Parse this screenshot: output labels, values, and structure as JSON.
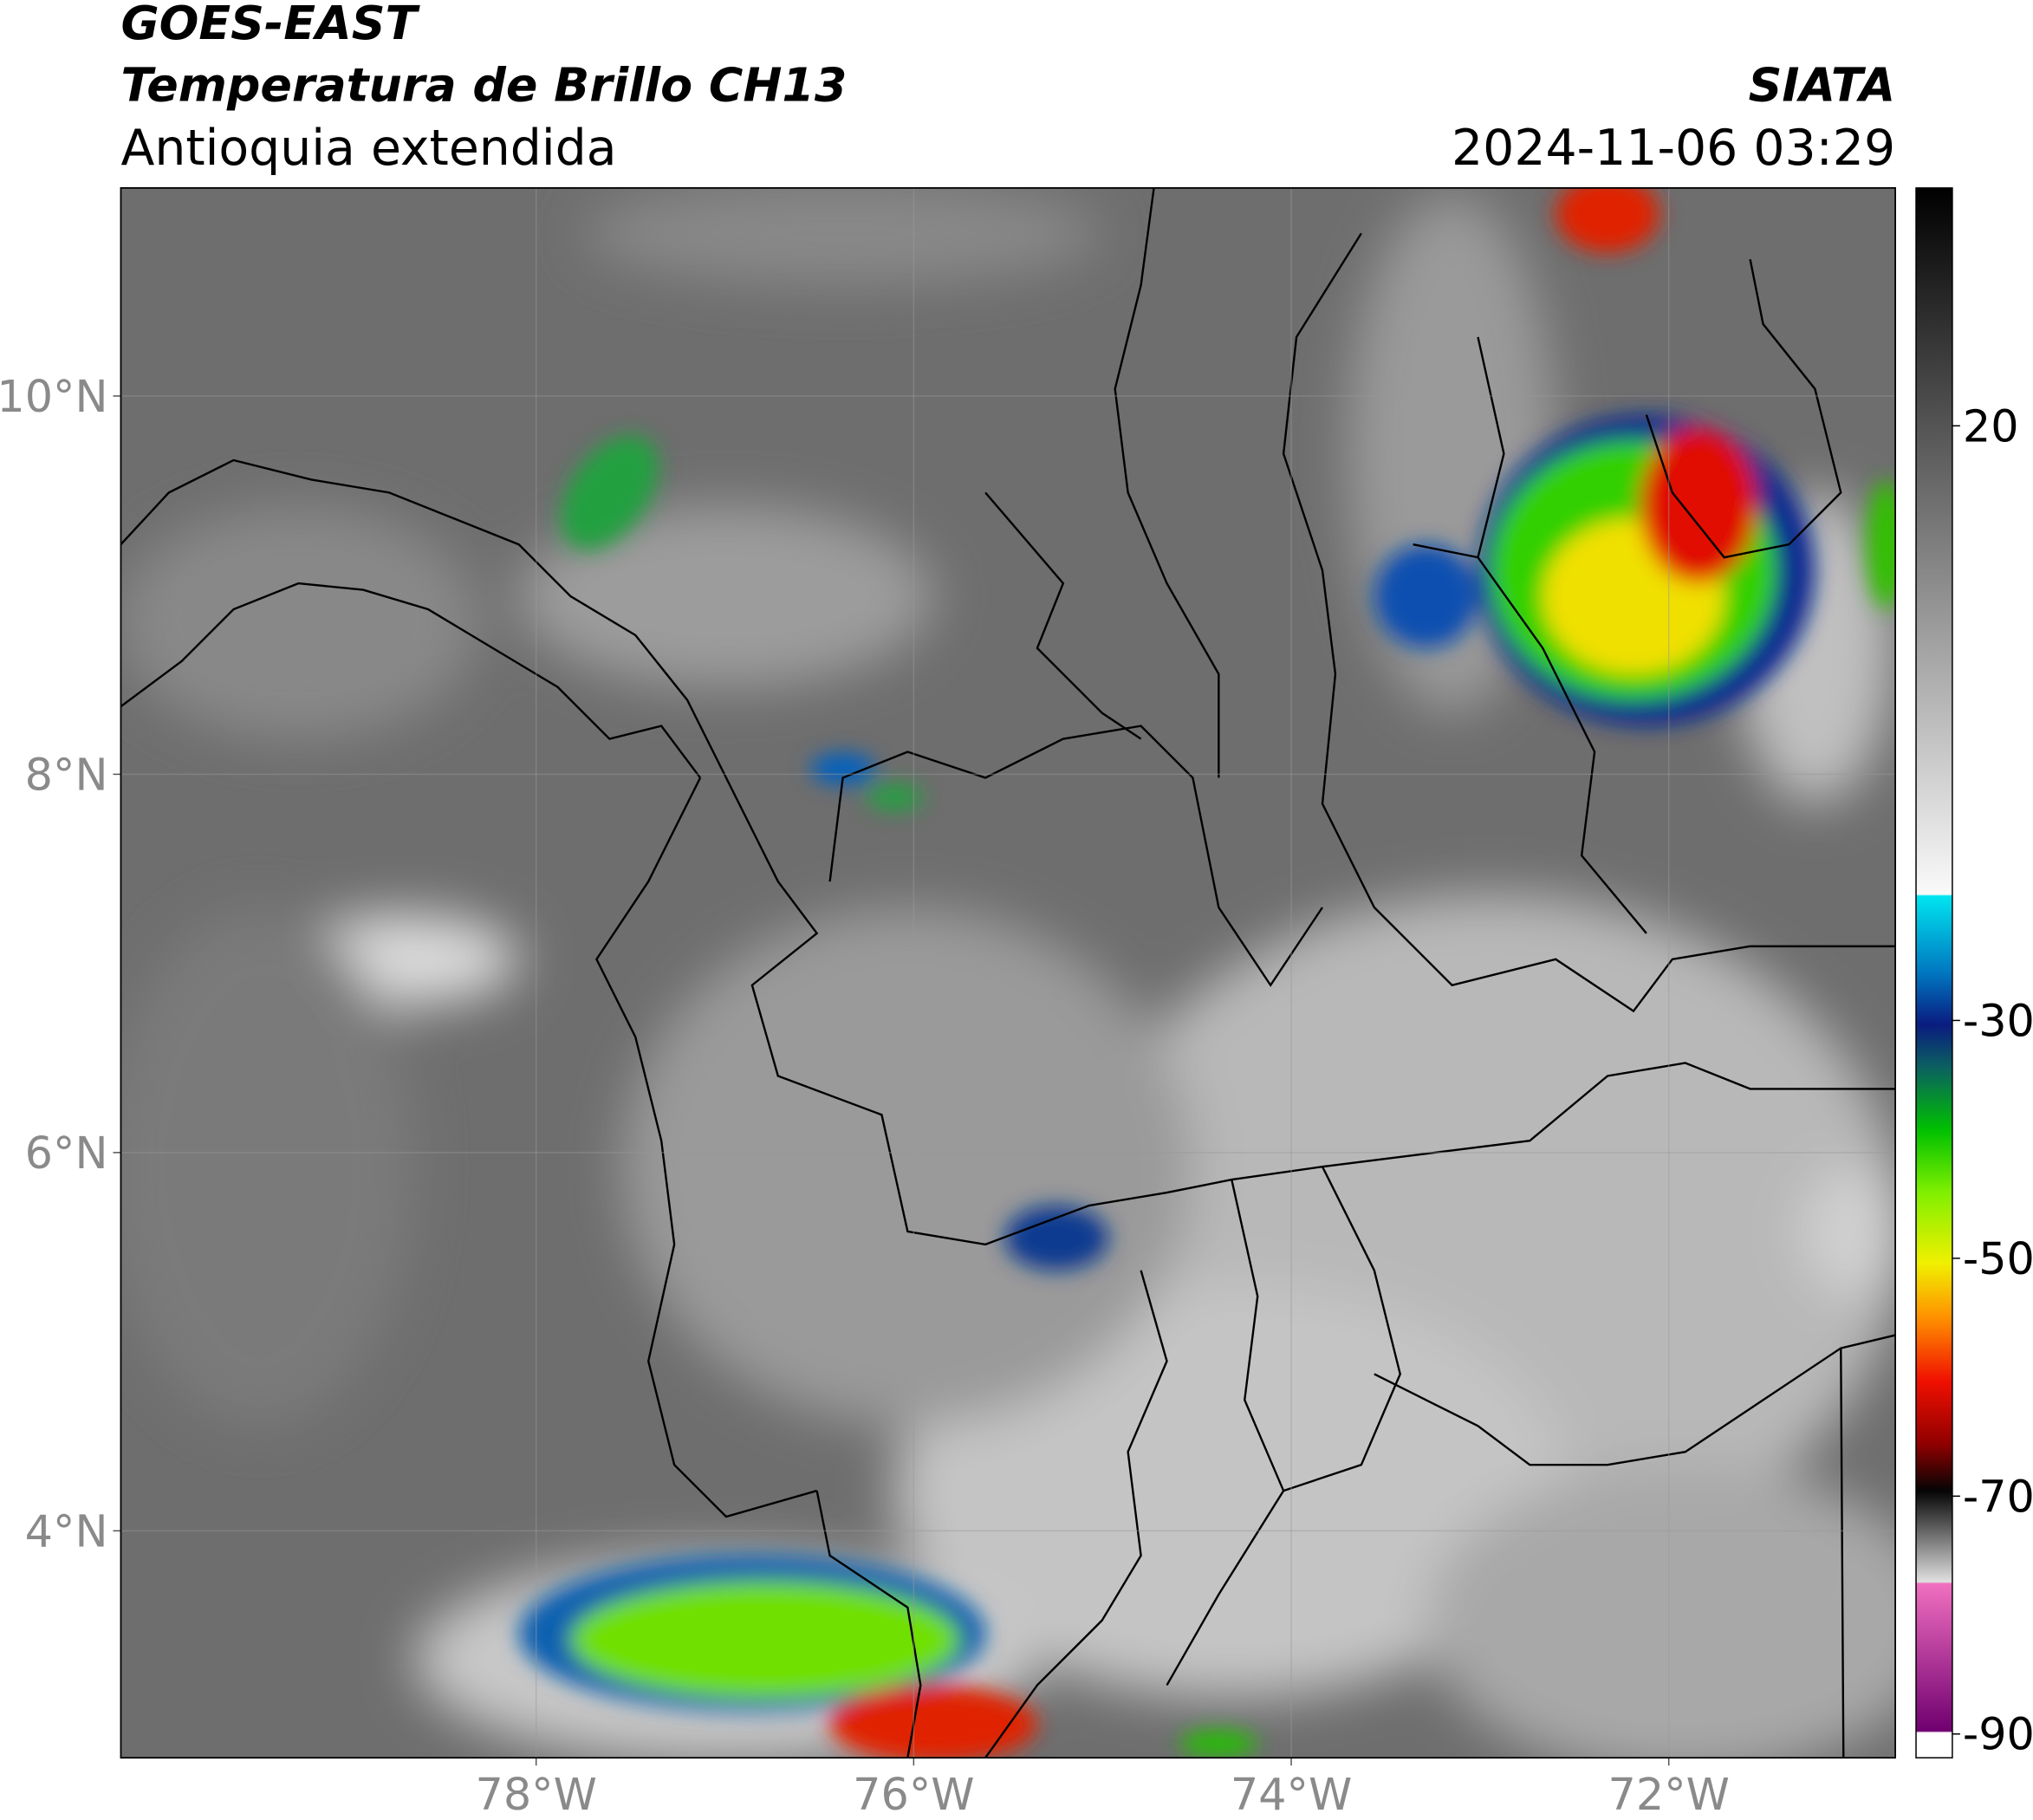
{
  "header": {
    "satellite": "GOES-EAST",
    "product": "Temperatura de Brillo CH13",
    "region": "Antioquia extendida",
    "source": "SIATA",
    "datetime": "2024-11-06 03:29"
  },
  "map": {
    "xlim": [
      -80.2,
      -70.8
    ],
    "ylim": [
      2.8,
      11.1
    ],
    "xticks": [
      {
        "value": -78,
        "label": "78°W"
      },
      {
        "value": -76,
        "label": "76°W"
      },
      {
        "value": -74,
        "label": "74°W"
      },
      {
        "value": -72,
        "label": "72°W"
      }
    ],
    "yticks": [
      {
        "value": 10,
        "label": "10°N"
      },
      {
        "value": 8,
        "label": "8°N"
      },
      {
        "value": 6,
        "label": "6°N"
      },
      {
        "value": 4,
        "label": "4°N"
      }
    ],
    "grid": true
  },
  "colorbar": {
    "lim": [
      -92,
      40
    ],
    "ticks": [
      20,
      -30,
      -50,
      -70,
      -90
    ]
  }
}
